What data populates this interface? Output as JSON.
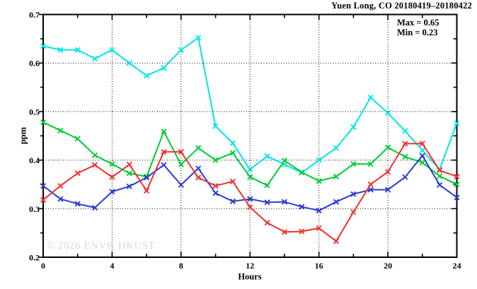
{
  "title": "Yuen Long, CO 20180419–20180422",
  "annotations": {
    "max_label": "Max = 0.65",
    "min_label": "Min = 0.23"
  },
  "watermark": "© 2026 ENVF, HKUST",
  "chart_data": {
    "type": "line",
    "title": "Yuen Long, CO 20180419–20180422",
    "xlabel": "Hours",
    "ylabel": "ppm",
    "xlim": [
      0,
      24
    ],
    "ylim": [
      0.2,
      0.7
    ],
    "x_major_ticks": [
      0,
      4,
      8,
      12,
      16,
      20,
      24
    ],
    "x_tick_labels": [
      "0",
      "4",
      "8",
      "12",
      "16",
      "20",
      "24"
    ],
    "x_minor_ticks": [
      2,
      6,
      10,
      14,
      18,
      22
    ],
    "y_major_ticks": [
      0.2,
      0.3,
      0.4,
      0.5,
      0.6,
      0.7
    ],
    "y_tick_labels": [
      "0.2",
      "0.3",
      "0.4",
      "0.5",
      "0.6",
      "0.7"
    ],
    "y_minor_ticks": [
      0.25,
      0.35,
      0.45,
      0.55,
      0.65
    ],
    "grid": "dotted-at-major-ticks",
    "legend": "none",
    "marker": "x-cross",
    "max": 0.65,
    "min": 0.23,
    "x": [
      0,
      1,
      2,
      3,
      4,
      5,
      6,
      7,
      8,
      9,
      10,
      11,
      12,
      13,
      14,
      15,
      16,
      17,
      18,
      19,
      20,
      21,
      22,
      23,
      24
    ],
    "series": [
      {
        "name": "cyan",
        "color": "#00E6E6",
        "values": [
          0.635,
          0.627,
          0.627,
          0.609,
          0.627,
          0.6,
          0.574,
          0.59,
          0.627,
          0.652,
          0.47,
          0.435,
          0.381,
          0.408,
          0.391,
          0.374,
          0.4,
          0.425,
          0.468,
          0.529,
          0.497,
          0.46,
          0.42,
          0.381,
          0.476
        ]
      },
      {
        "name": "green",
        "color": "#00CC33",
        "values": [
          0.478,
          0.461,
          0.444,
          0.41,
          0.392,
          0.373,
          0.366,
          0.459,
          0.391,
          0.425,
          0.4,
          0.415,
          0.365,
          0.348,
          0.399,
          0.375,
          0.357,
          0.366,
          0.392,
          0.392,
          0.426,
          0.407,
          0.395,
          0.367,
          0.35
        ]
      },
      {
        "name": "blue",
        "color": "#2B3CD0",
        "values": [
          0.347,
          0.32,
          0.31,
          0.302,
          0.335,
          0.346,
          0.364,
          0.39,
          0.349,
          0.383,
          0.332,
          0.315,
          0.32,
          0.313,
          0.314,
          0.304,
          0.296,
          0.314,
          0.33,
          0.339,
          0.339,
          0.365,
          0.409,
          0.349,
          0.323
        ]
      },
      {
        "name": "red",
        "color": "#EE3232",
        "values": [
          0.318,
          0.347,
          0.373,
          0.39,
          0.365,
          0.391,
          0.337,
          0.417,
          0.417,
          0.364,
          0.347,
          0.356,
          0.303,
          0.271,
          0.252,
          0.253,
          0.26,
          0.233,
          0.293,
          0.35,
          0.376,
          0.434,
          0.434,
          0.379,
          0.366
        ]
      }
    ]
  }
}
